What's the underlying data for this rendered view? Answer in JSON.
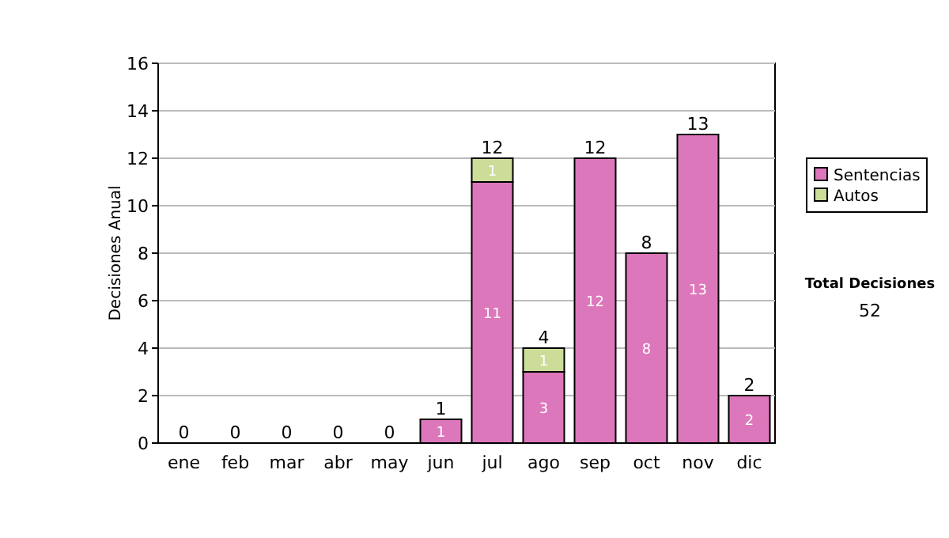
{
  "chart_data": {
    "type": "bar",
    "stacked": true,
    "ylabel": "Decisiones Anual",
    "categories": [
      "ene",
      "feb",
      "mar",
      "abr",
      "may",
      "jun",
      "jul",
      "ago",
      "sep",
      "oct",
      "nov",
      "dic"
    ],
    "series": [
      {
        "name": "Sentencias",
        "color": "#dd77bb",
        "values": [
          0,
          0,
          0,
          0,
          0,
          1,
          11,
          3,
          12,
          8,
          13,
          2
        ],
        "value_labels": [
          null,
          null,
          null,
          null,
          null,
          "1",
          "11",
          "3",
          "12",
          "8",
          "13",
          "2"
        ]
      },
      {
        "name": "Autos",
        "color": "#ccdd99",
        "values": [
          0,
          0,
          0,
          0,
          0,
          0,
          1,
          1,
          0,
          0,
          0,
          0
        ],
        "value_labels": [
          null,
          null,
          null,
          null,
          null,
          null,
          "1",
          "1",
          null,
          null,
          null,
          null
        ]
      }
    ],
    "totals": [
      "0",
      "0",
      "0",
      "0",
      "0",
      "1",
      "12",
      "4",
      "12",
      "8",
      "13",
      "2"
    ],
    "ylim": [
      0,
      16
    ],
    "yticks": [
      0,
      2,
      4,
      6,
      8,
      10,
      12,
      14,
      16
    ],
    "grid": "y",
    "legend": "right",
    "annotations": [
      "Total Decisiones",
      "52"
    ]
  }
}
